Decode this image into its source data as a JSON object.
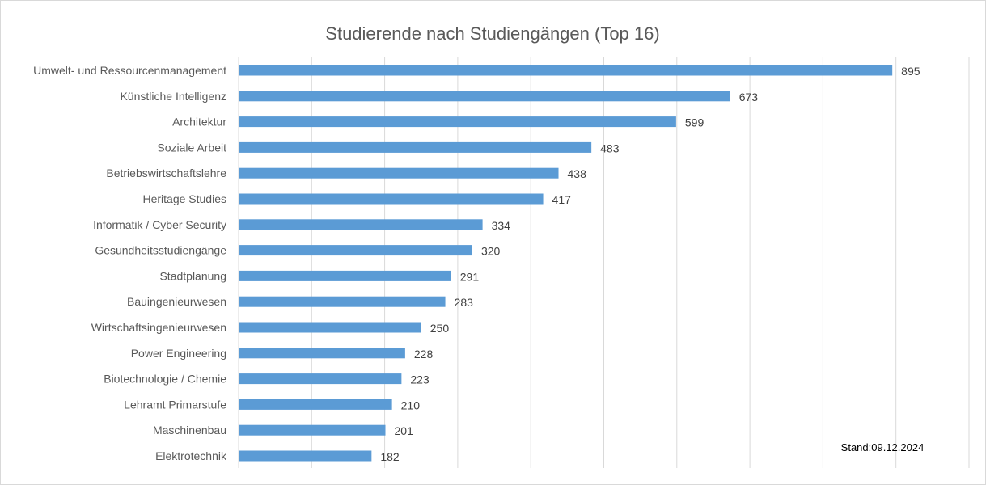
{
  "chart_data": {
    "type": "bar",
    "orientation": "horizontal",
    "title": "Studierende nach Studiengängen (Top 16)",
    "categories": [
      "Umwelt- und Ressourcenmanagement",
      "Künstliche Intelligenz",
      "Architektur",
      "Soziale Arbeit",
      "Betriebswirtschaftslehre",
      "Heritage Studies",
      "Informatik / Cyber Security",
      "Gesundheitsstudiengänge",
      "Stadtplanung",
      "Bauingenieurwesen",
      "Wirtschaftsingenieurwesen",
      "Power Engineering",
      "Biotechnologie / Chemie",
      "Lehramt Primarstufe",
      "Maschinenbau",
      "Elektrotechnik"
    ],
    "values": [
      895,
      673,
      599,
      483,
      438,
      417,
      334,
      320,
      291,
      283,
      250,
      228,
      223,
      210,
      201,
      182
    ],
    "xlim": [
      0,
      1000
    ],
    "grid": "vertical",
    "bar_color": "#5b9bd5",
    "grid_color": "#d9d9d9",
    "note": "Stand:09.12.2024"
  }
}
